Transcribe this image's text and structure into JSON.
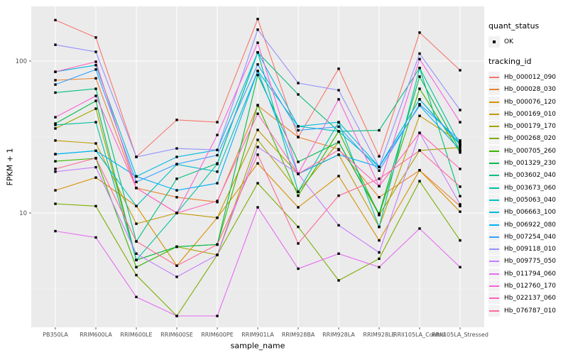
{
  "axes": {
    "x_title": "sample_name",
    "y_title": "FPKM + 1"
  },
  "legend": {
    "quant_title": "quant_status",
    "quant_items": [
      {
        "label": "OK"
      }
    ],
    "tracking_title": "tracking_id"
  },
  "colors": {
    "background": "#FFFFFF",
    "panel_bg": "#EBEBEB",
    "grid_major": "#FFFFFF",
    "grid_minor": "#F5F5F5",
    "tick_text": "#4D4D4D",
    "tick_mark": "#333333",
    "legend_key_bg": "#F2F2F2",
    "point_color": "#000000"
  },
  "chart_data": {
    "type": "line",
    "title": "",
    "xlabel": "sample_name",
    "ylabel": "FPKM + 1",
    "y_scale": "log10",
    "ylim": [
      1.8,
      230
    ],
    "grid": true,
    "legend_position": "right",
    "point_shape": "small-black-square",
    "quant_status_all_points": "OK",
    "y_ticks": [
      {
        "label": "100",
        "value": 100
      },
      {
        "label": "10",
        "value": 10
      }
    ],
    "y_major_gridlines": [
      100,
      10
    ],
    "y_minor_gridlines": [
      31.62,
      3.162
    ],
    "categories": [
      "PB350LA",
      "RRIM600LA",
      "RRIM600LE",
      "RRIM600SE",
      "RRIM600PE",
      "RRIM901LA",
      "RRIM928BA",
      "RRIM928LA",
      "RRIM928LE",
      "RRII105LA_Control",
      "RRII105LA_Stressed"
    ],
    "series": [
      {
        "name": "Hb_000012_090",
        "color": "#F8766D",
        "values": [
          186,
          143,
          23.4,
          41,
          39.6,
          189,
          31.6,
          89,
          23.6,
          154,
          87
        ]
      },
      {
        "name": "Hb_000028_030",
        "color": "#EA8331",
        "values": [
          74.8,
          77,
          14.6,
          12.7,
          11.8,
          51,
          31.6,
          26.3,
          12.7,
          19.1,
          11.1
        ]
      },
      {
        "name": "Hb_000076_120",
        "color": "#D89000",
        "values": [
          14.1,
          17.1,
          11.1,
          4.5,
          9.3,
          21.2,
          10.9,
          17.5,
          6.6,
          19.1,
          10.2
        ]
      },
      {
        "name": "Hb_000169_010",
        "color": "#C09B00",
        "values": [
          30,
          28.7,
          8.5,
          10,
          9.3,
          35.2,
          18.1,
          24.2,
          8.1,
          43.6,
          29.3
        ]
      },
      {
        "name": "Hb_000179_170",
        "color": "#A3A500",
        "values": [
          36,
          48.6,
          4.9,
          6,
          5.3,
          30.3,
          13.8,
          29.3,
          9.7,
          25.8,
          27
        ]
      },
      {
        "name": "Hb_000268_020",
        "color": "#7CAE00",
        "values": [
          11.5,
          11.1,
          3.9,
          2.1,
          5.3,
          15.7,
          8.1,
          3.6,
          5,
          16.2,
          6.6
        ]
      },
      {
        "name": "Hb_000705_260",
        "color": "#39B600",
        "values": [
          21.9,
          22.9,
          4.4,
          6,
          6.2,
          51.3,
          13,
          34.5,
          9.7,
          65.7,
          25
        ]
      },
      {
        "name": "Hb_001329_230",
        "color": "#00BB4E",
        "values": [
          38.8,
          54.7,
          4.9,
          6,
          6.2,
          81,
          21.7,
          29.3,
          9.9,
          79,
          25.7
        ]
      },
      {
        "name": "Hb_003602_040",
        "color": "#00BF7D",
        "values": [
          62,
          65.7,
          6.5,
          16.8,
          21.2,
          114,
          60.3,
          34.5,
          35,
          90,
          12.9
        ]
      },
      {
        "name": "Hb_003673_060",
        "color": "#00C1A3",
        "values": [
          38,
          39.6,
          4.9,
          10,
          21,
          114,
          13.8,
          39.6,
          8.1,
          90,
          28
        ]
      },
      {
        "name": "Hb_005063_040",
        "color": "#00BFC4",
        "values": [
          24.4,
          25.7,
          11.1,
          20.9,
          18.7,
          86,
          37.2,
          34.5,
          20.1,
          56,
          28
        ]
      },
      {
        "name": "Hb_006663_100",
        "color": "#00BAE0",
        "values": [
          85,
          94,
          17.4,
          23.4,
          26,
          114,
          37.2,
          39.6,
          20.1,
          56,
          28.5
        ]
      },
      {
        "name": "Hb_006922_080",
        "color": "#00B0F6",
        "values": [
          24.4,
          25.7,
          17.4,
          14.1,
          15.7,
          86,
          18.1,
          24.2,
          20.1,
          51,
          26
        ]
      },
      {
        "name": "Hb_007254_040",
        "color": "#35A2FF",
        "values": [
          70,
          88,
          16,
          21,
          24,
          95,
          35,
          37,
          19,
          52,
          30
        ]
      },
      {
        "name": "Hb_009118_010",
        "color": "#9590FF",
        "values": [
          128,
          115,
          23.4,
          26.6,
          26,
          161,
          71.6,
          64.3,
          20.1,
          112,
          47.6
        ]
      },
      {
        "name": "Hb_009775_050",
        "color": "#C77CFF",
        "values": [
          18.7,
          20,
          5.4,
          3.8,
          5.3,
          27.2,
          18.1,
          8.3,
          5.5,
          33.7,
          11.4
        ]
      },
      {
        "name": "Hb_011794_060",
        "color": "#E76BF3",
        "values": [
          7.6,
          6.9,
          2.8,
          2.1,
          2.1,
          10.9,
          4.3,
          5.4,
          4.4,
          7.9,
          4.4
        ]
      },
      {
        "name": "Hb_012760_170",
        "color": "#FA62DB",
        "values": [
          42.7,
          59,
          14.6,
          10,
          32.6,
          132,
          18.1,
          56,
          15,
          103,
          39.6
        ]
      },
      {
        "name": "Hb_022137_060",
        "color": "#FF62BC",
        "values": [
          85,
          99,
          14.6,
          10,
          12,
          45,
          18.1,
          26,
          15,
          33.7,
          19.5
        ]
      },
      {
        "name": "Hb_076787_010",
        "color": "#FF6A98",
        "values": [
          19.5,
          23,
          6.5,
          4.5,
          6.2,
          24.2,
          6.3,
          13,
          16.8,
          25.8,
          14.9
        ]
      }
    ]
  }
}
